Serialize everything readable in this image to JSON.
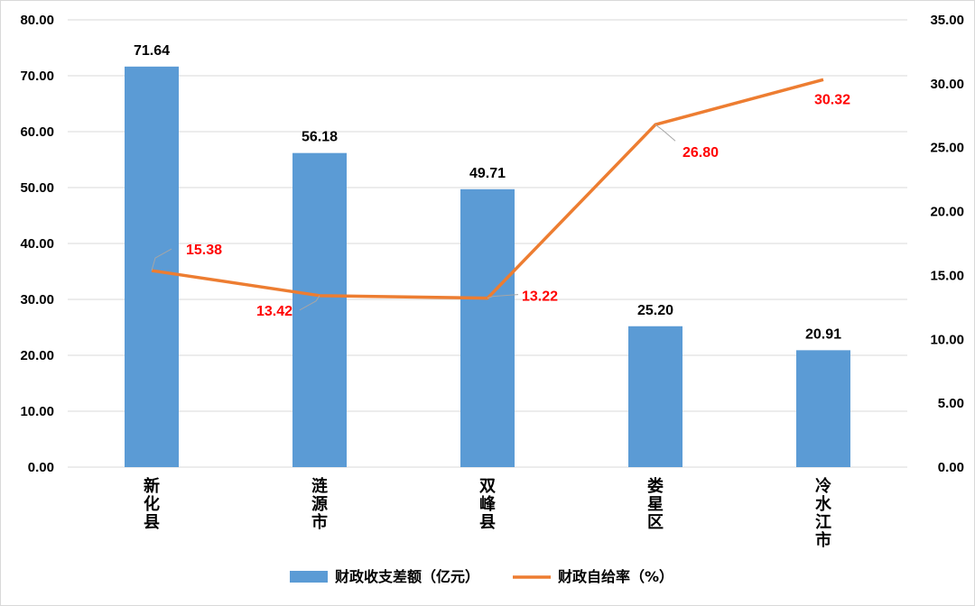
{
  "chart_data": {
    "type": "bar",
    "categories": [
      "新化县",
      "涟源市",
      "双峰县",
      "娄星区",
      "冷水江市"
    ],
    "series": [
      {
        "name": "财政收支差额（亿元）",
        "type": "bar",
        "axis": "left",
        "color": "#5b9bd5",
        "values": [
          71.64,
          56.18,
          49.71,
          25.2,
          20.91
        ],
        "labels": [
          "71.64",
          "56.18",
          "49.71",
          "25.20",
          "20.91"
        ]
      },
      {
        "name": "财政自给率（%）",
        "type": "line",
        "axis": "right",
        "color": "#ed7d31",
        "values": [
          15.38,
          13.42,
          13.22,
          26.8,
          30.32
        ],
        "labels": [
          "15.38",
          "13.42",
          "13.22",
          "26.80",
          "30.32"
        ]
      }
    ],
    "y_left": {
      "min": 0,
      "max": 80,
      "ticks": [
        "0.00",
        "10.00",
        "20.00",
        "30.00",
        "40.00",
        "50.00",
        "60.00",
        "70.00",
        "80.00"
      ]
    },
    "y_right": {
      "min": 0,
      "max": 35,
      "ticks": [
        "0.00",
        "5.00",
        "10.00",
        "15.00",
        "20.00",
        "25.00",
        "30.00",
        "35.00"
      ]
    },
    "grid": "horizontal",
    "legend": "bottom-center",
    "data_label_color_line": "#ff0000"
  }
}
